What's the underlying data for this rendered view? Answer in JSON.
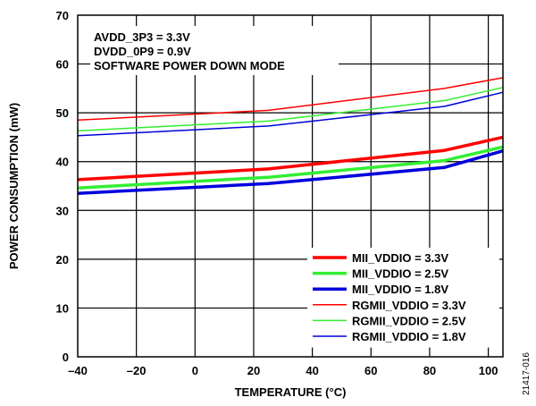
{
  "chart_data": {
    "type": "line",
    "xlabel": "TEMPERATURE (°C)",
    "ylabel": "POWER CONSUMPTION (mW)",
    "xlim": [
      -40,
      105
    ],
    "ylim": [
      0,
      70
    ],
    "xticks": [
      -40,
      -20,
      0,
      20,
      40,
      60,
      80,
      100
    ],
    "yticks": [
      0,
      10,
      20,
      30,
      40,
      50,
      60,
      70
    ],
    "x_tick_labels": [
      "–40",
      "–20",
      "0",
      "20",
      "40",
      "60",
      "80",
      "100"
    ],
    "y_tick_labels": [
      "0",
      "10",
      "20",
      "30",
      "40",
      "50",
      "60",
      "70"
    ],
    "grid": true,
    "legend_position": "bottom-right",
    "annotation_lines": [
      "AVDD_3P3 = 3.3V",
      "DVDD_0P9 = 0.9V",
      "SOFTWARE POWER DOWN MODE"
    ],
    "figure_id": "21417-016",
    "series": [
      {
        "name": "MII_VDDIO = 3.3V",
        "color": "#ff0000",
        "thick": true,
        "x": [
          -40,
          25,
          85,
          105
        ],
        "y": [
          36.3,
          38.5,
          42.3,
          45.0
        ]
      },
      {
        "name": "MII_VDDIO = 2.5V",
        "color": "#33ee33",
        "thick": true,
        "x": [
          -40,
          25,
          85,
          105
        ],
        "y": [
          34.6,
          36.8,
          40.2,
          43.0
        ]
      },
      {
        "name": "MII_VDDIO = 1.8V",
        "color": "#0000dd",
        "thick": true,
        "x": [
          -40,
          25,
          85,
          105
        ],
        "y": [
          33.5,
          35.5,
          38.8,
          42.2
        ]
      },
      {
        "name": "RGMII_VDDIO = 3.3V",
        "color": "#ff0000",
        "thick": false,
        "x": [
          -40,
          25,
          85,
          105
        ],
        "y": [
          48.5,
          50.5,
          55.0,
          57.2
        ]
      },
      {
        "name": "RGMII_VDDIO = 2.5V",
        "color": "#33ee33",
        "thick": false,
        "x": [
          -40,
          25,
          85,
          105
        ],
        "y": [
          46.3,
          48.3,
          52.5,
          55.2
        ]
      },
      {
        "name": "RGMII_VDDIO = 1.8V",
        "color": "#0000dd",
        "thick": false,
        "x": [
          -40,
          25,
          85,
          105
        ],
        "y": [
          45.3,
          47.3,
          51.3,
          54.2
        ]
      }
    ]
  }
}
